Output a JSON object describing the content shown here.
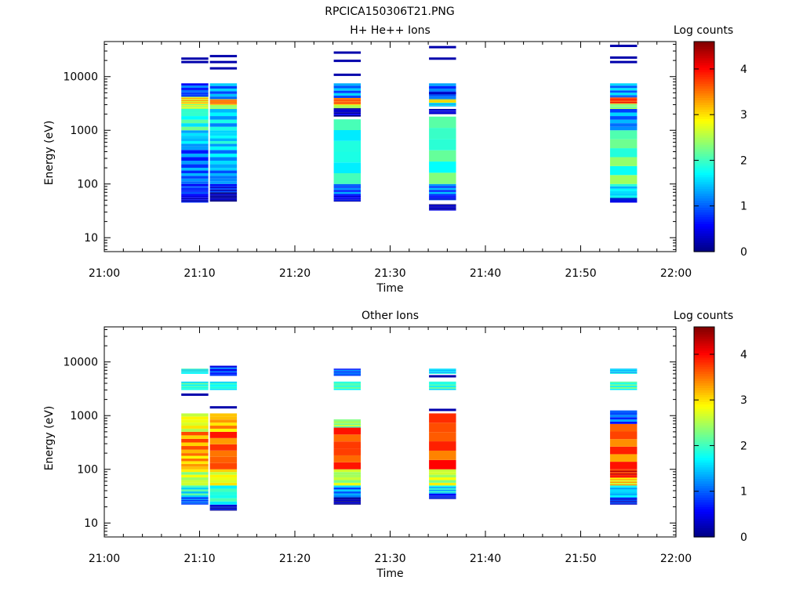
{
  "figure_title": "RPCICA150306T21.PNG",
  "chart_data": [
    {
      "type": "heatmap",
      "title": "H+ He++ Ions",
      "xlabel": "Time",
      "ylabel": "Energy (eV)",
      "xticks": [
        "21:00",
        "21:10",
        "21:20",
        "21:30",
        "21:40",
        "21:50",
        "22:00"
      ],
      "xlim": [
        "21:00",
        "22:00"
      ],
      "yscale": "log",
      "ylim": [
        5.5,
        45000
      ],
      "yticks": [
        "10",
        "100",
        "1000",
        "10000"
      ],
      "colorbar": {
        "label": "Log counts",
        "range": [
          0,
          4.6
        ],
        "ticks": [
          "0",
          "1",
          "2",
          "3",
          "4"
        ],
        "colormap": "jet"
      },
      "columns": [
        {
          "t_start": "21:08",
          "t_end": "21:11",
          "bands": [
            [
              45,
              60,
              0.4
            ],
            [
              60,
              100,
              0.8
            ],
            [
              100,
              200,
              1.1
            ],
            [
              200,
              500,
              1.0
            ],
            [
              500,
              1000,
              1.5
            ],
            [
              1000,
              2500,
              1.9
            ],
            [
              2500,
              3200,
              2.6
            ],
            [
              3200,
              4200,
              3.0
            ],
            [
              4200,
              7500,
              0.9
            ]
          ],
          "lines": [
            [
              19000,
              0.2
            ],
            [
              22000,
              0.2
            ]
          ]
        },
        {
          "t_start": "21:11",
          "t_end": "21:14",
          "bands": [
            [
              47,
              70,
              0.2
            ],
            [
              70,
              100,
              0.6
            ],
            [
              100,
              200,
              1.2
            ],
            [
              200,
              500,
              1.4
            ],
            [
              500,
              1000,
              1.6
            ],
            [
              1000,
              2500,
              1.5
            ],
            [
              2500,
              3000,
              2.4
            ],
            [
              3000,
              3800,
              3.5
            ],
            [
              3800,
              7500,
              1.2
            ]
          ],
          "lines": [
            [
              14500,
              0.2
            ],
            [
              19000,
              0.2
            ],
            [
              24500,
              0.2
            ]
          ]
        },
        {
          "t_start": "21:24",
          "t_end": "21:27",
          "bands": [
            [
              47,
              60,
              0.5
            ],
            [
              60,
              100,
              1.0
            ],
            [
              100,
              1600,
              1.8
            ],
            [
              1800,
              2600,
              0.3
            ],
            [
              2600,
              3000,
              2.5
            ],
            [
              3000,
              4000,
              3.6
            ],
            [
              4000,
              7500,
              1.2
            ]
          ],
          "lines": [
            [
              11000,
              0.2
            ],
            [
              20000,
              0.2
            ],
            [
              28500,
              0.2
            ]
          ]
        },
        {
          "t_start": "21:34",
          "t_end": "21:37",
          "bands": [
            [
              32,
              42,
              0.2
            ],
            [
              50,
              60,
              0.6
            ],
            [
              60,
              100,
              1.1
            ],
            [
              100,
              1800,
              2.0
            ],
            [
              2000,
              2500,
              0.4
            ],
            [
              2800,
              3300,
              1.5
            ],
            [
              3300,
              3800,
              3.0
            ],
            [
              3800,
              7500,
              1.0
            ]
          ],
          "lines": [
            [
              5000,
              0.3
            ],
            [
              22000,
              0.2
            ],
            [
              36000,
              0.2
            ]
          ]
        },
        {
          "t_start": "21:53",
          "t_end": "21:56",
          "bands": [
            [
              45,
              55,
              0.5
            ],
            [
              55,
              100,
              1.6
            ],
            [
              100,
              1000,
              2.1
            ],
            [
              1000,
              2500,
              1.2
            ],
            [
              2500,
              3100,
              2.3
            ],
            [
              3100,
              4100,
              3.8
            ],
            [
              4100,
              7500,
              1.3
            ]
          ],
          "lines": [
            [
              19000,
              0.2
            ],
            [
              23000,
              0.2
            ],
            [
              38000,
              0.2
            ]
          ]
        }
      ]
    },
    {
      "type": "heatmap",
      "title": "Other Ions",
      "xlabel": "Time",
      "ylabel": "Energy (eV)",
      "xticks": [
        "21:00",
        "21:10",
        "21:20",
        "21:30",
        "21:40",
        "21:50",
        "22:00"
      ],
      "xlim": [
        "21:00",
        "22:00"
      ],
      "yscale": "log",
      "ylim": [
        5.5,
        45000
      ],
      "yticks": [
        "10",
        "100",
        "1000",
        "10000"
      ],
      "colorbar": {
        "label": "Log counts",
        "range": [
          0,
          4.6
        ],
        "ticks": [
          "0",
          "1",
          "2",
          "3",
          "4"
        ],
        "colormap": "jet"
      },
      "columns": [
        {
          "t_start": "21:08",
          "t_end": "21:11",
          "bands": [
            [
              22,
              30,
              1.0
            ],
            [
              30,
              50,
              1.8
            ],
            [
              50,
              100,
              2.6
            ],
            [
              100,
              200,
              3.2
            ],
            [
              200,
              500,
              3.4
            ],
            [
              500,
              1100,
              2.8
            ],
            [
              3000,
              4300,
              1.9
            ],
            [
              6000,
              7500,
              1.7
            ]
          ],
          "lines": [
            [
              2500,
              0.2
            ]
          ]
        },
        {
          "t_start": "21:11",
          "t_end": "21:14",
          "bands": [
            [
              17,
              22,
              0.4
            ],
            [
              22,
              50,
              1.9
            ],
            [
              50,
              100,
              2.8
            ],
            [
              100,
              500,
              3.6
            ],
            [
              500,
              1100,
              3.2
            ],
            [
              3000,
              4300,
              1.8
            ],
            [
              5500,
              8500,
              0.8
            ]
          ],
          "lines": [
            [
              1450,
              0.2
            ]
          ]
        },
        {
          "t_start": "21:24",
          "t_end": "21:27",
          "bands": [
            [
              22,
              30,
              0.2
            ],
            [
              30,
              50,
              1.2
            ],
            [
              50,
              100,
              2.5
            ],
            [
              100,
              600,
              3.7
            ],
            [
              600,
              850,
              2.4
            ],
            [
              3000,
              4300,
              2.0
            ],
            [
              5500,
              7500,
              1.0
            ]
          ],
          "lines": []
        },
        {
          "t_start": "21:34",
          "t_end": "21:37",
          "bands": [
            [
              28,
              35,
              0.6
            ],
            [
              35,
              50,
              1.6
            ],
            [
              50,
              100,
              2.6
            ],
            [
              100,
              1100,
              3.7
            ],
            [
              3000,
              4300,
              1.9
            ],
            [
              6000,
              7500,
              1.5
            ]
          ],
          "lines": [
            [
              1300,
              0.2
            ],
            [
              5500,
              0.2
            ]
          ]
        },
        {
          "t_start": "21:53",
          "t_end": "21:56",
          "bands": [
            [
              22,
              30,
              0.6
            ],
            [
              30,
              50,
              1.5
            ],
            [
              50,
              70,
              3.0
            ],
            [
              70,
              100,
              4.0
            ],
            [
              100,
              700,
              3.6
            ],
            [
              700,
              1250,
              1.0
            ],
            [
              3000,
              4300,
              2.0
            ],
            [
              6000,
              7500,
              1.5
            ]
          ],
          "lines": []
        }
      ]
    }
  ]
}
